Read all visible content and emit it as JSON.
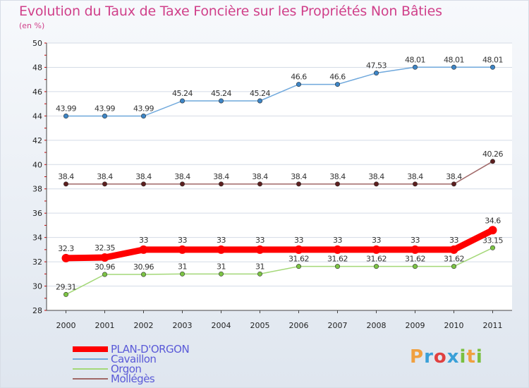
{
  "title": "Evolution du Taux de Taxe Foncière sur les Propriétés Non Bâties",
  "unit_label": "(en %)",
  "logo": {
    "letters": [
      "P",
      "r",
      "o",
      "x",
      "i",
      "t",
      "i"
    ],
    "colors": [
      "#f0a040",
      "#3aa0d8",
      "#e04040",
      "#3aa0d8",
      "#7ac040",
      "#f0a040",
      "#7ac040"
    ]
  },
  "chart_data": {
    "type": "line",
    "title": "Evolution du Taux de Taxe Foncière sur les Propriétés Non Bâties",
    "ylabel": "(en %)",
    "xlabel": "",
    "categories": [
      "2000",
      "2001",
      "2002",
      "2003",
      "2004",
      "2005",
      "2006",
      "2007",
      "2008",
      "2009",
      "2010",
      "2011"
    ],
    "ylim": [
      28,
      50
    ],
    "yticks": [
      28,
      30,
      32,
      34,
      36,
      38,
      40,
      42,
      44,
      46,
      48,
      50
    ],
    "grid": true,
    "legend_position": "bottom-left",
    "series": [
      {
        "name": "Cavaillon",
        "color": "#6fa8dc",
        "marker": "#3d85c6",
        "thick": false,
        "values": [
          43.99,
          43.99,
          43.99,
          45.24,
          45.24,
          45.24,
          46.6,
          46.6,
          47.53,
          48.01,
          48.01,
          48.01
        ],
        "labels": [
          "43.99",
          "43.99",
          "43.99",
          "45.24",
          "45.24",
          "45.24",
          "46.6",
          "46.6",
          "47.53",
          "48.01",
          "48.01",
          "48.01"
        ]
      },
      {
        "name": "Mollégès",
        "color": "#a06868",
        "marker": "#5c1f1f",
        "thick": false,
        "values": [
          38.4,
          38.4,
          38.4,
          38.4,
          38.4,
          38.4,
          38.4,
          38.4,
          38.4,
          38.4,
          38.4,
          40.26
        ],
        "labels": [
          "38.4",
          "38.4",
          "38.4",
          "38.4",
          "38.4",
          "38.4",
          "38.4",
          "38.4",
          "38.4",
          "38.4",
          "38.4",
          "40.26"
        ]
      },
      {
        "name": "Orgon",
        "color": "#a4d878",
        "marker": "#7cc444",
        "thick": false,
        "values": [
          29.31,
          30.96,
          30.96,
          31,
          31,
          31,
          31.62,
          31.62,
          31.62,
          31.62,
          31.62,
          33.15
        ],
        "labels": [
          "29.31",
          "30.96",
          "30.96",
          "31",
          "31",
          "31",
          "31.62",
          "31.62",
          "31.62",
          "31.62",
          "31.62",
          "33.15"
        ]
      },
      {
        "name": "PLAN-D'ORGON",
        "color": "#ff0000",
        "marker": "#ff0000",
        "thick": true,
        "values": [
          32.3,
          32.35,
          33,
          33,
          33,
          33,
          33,
          33,
          33,
          33,
          33,
          34.6
        ],
        "labels": [
          "32.3",
          "32.35",
          "33",
          "33",
          "33",
          "33",
          "33",
          "33",
          "33",
          "33",
          "33",
          "34.6"
        ]
      }
    ],
    "legend_order": [
      "PLAN-D'ORGON",
      "Cavaillon",
      "Orgon",
      "Mollégès"
    ]
  }
}
